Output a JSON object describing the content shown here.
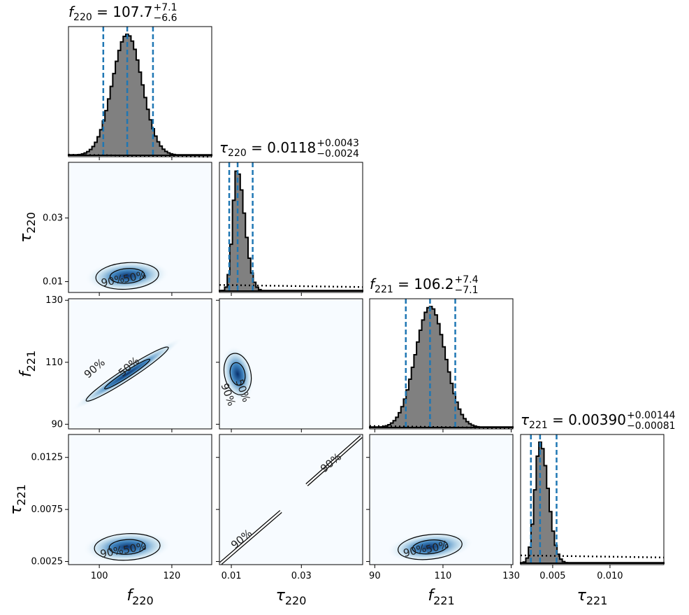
{
  "chart_data": {
    "type": "corner",
    "params": [
      {
        "id": "f220",
        "sym": "f",
        "sub": "220",
        "ticks": [
          100,
          120
        ],
        "tick_labels": [
          "100",
          "120"
        ],
        "range": [
          91.5,
          131
        ]
      },
      {
        "id": "tau220",
        "sym": "τ",
        "sub": "220",
        "ticks": [
          0.01,
          0.03
        ],
        "tick_labels": [
          "0.01",
          "0.03"
        ],
        "range": [
          0.0066,
          0.0475
        ]
      },
      {
        "id": "f221",
        "sym": "f",
        "sub": "221",
        "ticks": [
          90,
          110,
          130
        ],
        "tick_labels": [
          "90",
          "110",
          "130"
        ],
        "range": [
          88.5,
          130.5
        ]
      },
      {
        "id": "tau221",
        "sym": "τ",
        "sub": "221",
        "ticks": [
          0.0025,
          0.0075,
          0.0125
        ],
        "tick_labels": [
          "0.0025",
          "0.0075",
          "0.0125"
        ],
        "range": [
          0.0022,
          0.0147
        ],
        "x_tick_labels": [
          "0.005",
          "0.010"
        ],
        "x_ticks": [
          0.005,
          0.01
        ]
      }
    ],
    "titles": [
      {
        "label": "f",
        "sub": "220",
        "value": "107.7",
        "plus": "+7.1",
        "minus": "−6.6"
      },
      {
        "label": "τ",
        "sub": "220",
        "value": "0.0118",
        "plus": "+0.0043",
        "minus": "−0.0024"
      },
      {
        "label": "f",
        "sub": "221",
        "value": "106.2",
        "plus": "+7.4",
        "minus": "−7.1"
      },
      {
        "label": "τ",
        "sub": "221",
        "value": "0.00390",
        "plus": "+0.00144",
        "minus": "−0.00081"
      }
    ],
    "marginals": [
      {
        "median": 107.7,
        "lo": 101.1,
        "hi": 114.8,
        "prior": 0.03,
        "dist": {
          "kind": "gauss",
          "mu": 107.7,
          "sigma": 4.1
        }
      },
      {
        "median": 0.0118,
        "lo": 0.0094,
        "hi": 0.0161,
        "prior": 0.28,
        "dist": {
          "kind": "skew",
          "mode": 0.0116,
          "sl": 0.0012,
          "sr": 0.0022
        }
      },
      {
        "median": 106.2,
        "lo": 99.1,
        "hi": 113.6,
        "prior": 0.07,
        "dist": {
          "kind": "gauss",
          "mu": 106.3,
          "sigma": 4.4
        }
      },
      {
        "median": 0.0039,
        "lo": 0.0031,
        "hi": 0.00534,
        "prior": 0.36,
        "dist": {
          "kind": "skew",
          "mode": 0.0039,
          "sl": 0.00045,
          "sr": 0.0007
        }
      }
    ],
    "contour_levels": [
      "50%",
      "90%"
    ],
    "colormap": {
      "low": "#f7fbff",
      "high": "#08306b"
    },
    "colors": {
      "hist_fill": "#808080",
      "hist_edge": "#000000",
      "quantile_line": "#1f77b4",
      "prior_line": "#000000"
    }
  }
}
